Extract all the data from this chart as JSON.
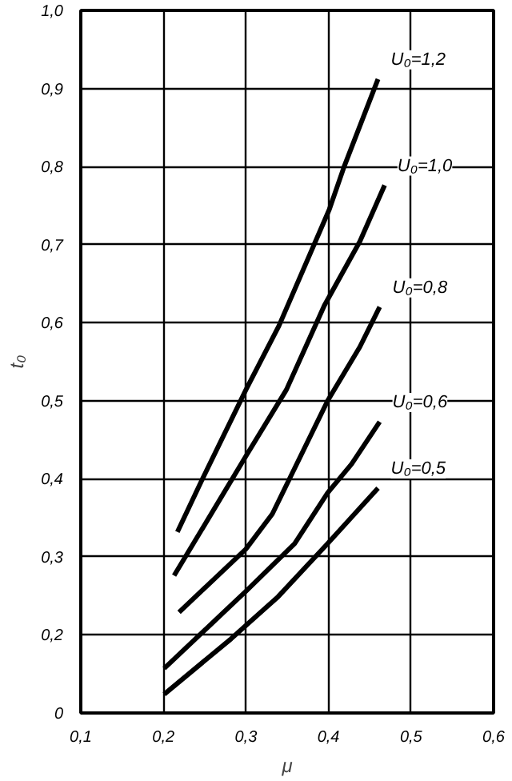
{
  "chart_data": {
    "type": "line",
    "xlabel": "μ",
    "ylabel": "t₀",
    "xlim": [
      0.1,
      0.6
    ],
    "ylim": [
      0.1,
      1.0
    ],
    "xticks": [
      {
        "value": 0.1,
        "label": "0,1"
      },
      {
        "value": 0.2,
        "label": "0,2"
      },
      {
        "value": 0.3,
        "label": "0,3"
      },
      {
        "value": 0.4,
        "label": "0,4"
      },
      {
        "value": 0.5,
        "label": "0,5"
      },
      {
        "value": 0.6,
        "label": "0,6"
      }
    ],
    "yticks": [
      {
        "value": 0.1,
        "label": "0"
      },
      {
        "value": 0.2,
        "label": "0,2"
      },
      {
        "value": 0.3,
        "label": "0,3"
      },
      {
        "value": 0.4,
        "label": "0,4"
      },
      {
        "value": 0.5,
        "label": "0,5"
      },
      {
        "value": 0.6,
        "label": "0,6"
      },
      {
        "value": 0.7,
        "label": "0,7"
      },
      {
        "value": 0.8,
        "label": "0,8"
      },
      {
        "value": 0.9,
        "label": "0,9"
      },
      {
        "value": 1.0,
        "label": "1,0"
      }
    ],
    "grid": true,
    "line_style": "solid",
    "series": [
      {
        "name": "U₀=1,2",
        "color": "#000000",
        "x": [
          0.217,
          0.247,
          0.3,
          0.34,
          0.401,
          0.419,
          0.46
        ],
        "values": [
          0.332,
          0.399,
          0.514,
          0.596,
          0.745,
          0.8,
          0.912
        ]
      },
      {
        "name": "U₀=1,0",
        "color": "#000000",
        "x": [
          0.213,
          0.3,
          0.349,
          0.395,
          0.438,
          0.468
        ],
        "values": [
          0.276,
          0.429,
          0.514,
          0.622,
          0.704,
          0.776
        ]
      },
      {
        "name": "U₀=0,8",
        "color": "#000000",
        "x": [
          0.219,
          0.3,
          0.332,
          0.399,
          0.438,
          0.462
        ],
        "values": [
          0.229,
          0.31,
          0.355,
          0.5,
          0.569,
          0.62
        ]
      },
      {
        "name": "U₀=0,6",
        "color": "#000000",
        "x": [
          0.201,
          0.3,
          0.359,
          0.399,
          0.428,
          0.462
        ],
        "values": [
          0.157,
          0.256,
          0.317,
          0.382,
          0.419,
          0.473
        ]
      },
      {
        "name": "U₀=0,5",
        "color": "#000000",
        "x": [
          0.201,
          0.282,
          0.339,
          0.399,
          0.46
        ],
        "values": [
          0.124,
          0.195,
          0.249,
          0.317,
          0.388
        ]
      }
    ]
  }
}
